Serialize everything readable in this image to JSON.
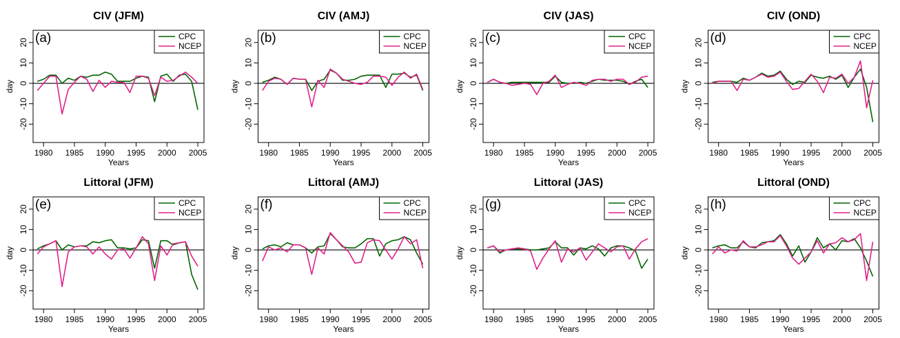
{
  "chart_data": [
    {
      "type": "line",
      "title": "CIV (JFM)",
      "annotation": "(a)",
      "xlabel": "Years",
      "ylabel": "day",
      "x": [
        1979,
        1980,
        1981,
        1982,
        1983,
        1984,
        1985,
        1986,
        1987,
        1988,
        1989,
        1990,
        1991,
        1992,
        1993,
        1994,
        1995,
        1996,
        1997,
        1998,
        1999,
        2000,
        2001,
        2002,
        2003,
        2004,
        2005
      ],
      "xlim": [
        1978.3,
        2006
      ],
      "xticks": [
        1980,
        1985,
        1990,
        1995,
        2000,
        2005
      ],
      "ylim": [
        -29,
        26
      ],
      "yticks": [
        -20,
        -10,
        0,
        10,
        20
      ],
      "hline": 0,
      "legend": "topright",
      "series": [
        {
          "name": "CPC",
          "color": "#006400",
          "values": [
            1,
            2,
            4,
            4,
            0,
            2.5,
            1.5,
            3.5,
            3,
            4,
            4,
            5.5,
            4.5,
            1,
            1,
            1,
            2.5,
            3.5,
            3,
            -9,
            3.5,
            4.5,
            1,
            4,
            4.5,
            1,
            -13
          ]
        },
        {
          "name": "NCEP",
          "color": "#e0218a",
          "values": [
            -3.5,
            0,
            3.5,
            3.5,
            -15,
            -3,
            0.5,
            3.5,
            2,
            -4,
            1.5,
            -2,
            1,
            0.5,
            0.5,
            -4.5,
            3.5,
            3.5,
            2.5,
            -6,
            3,
            1,
            1.5,
            3.5,
            5.5,
            3,
            0
          ]
        }
      ]
    },
    {
      "type": "line",
      "title": "CIV (AMJ)",
      "annotation": "(b)",
      "xlabel": "Years",
      "ylabel": "day",
      "x": [
        1979,
        1980,
        1981,
        1982,
        1983,
        1984,
        1985,
        1986,
        1987,
        1988,
        1989,
        1990,
        1991,
        1992,
        1993,
        1994,
        1995,
        1996,
        1997,
        1998,
        1999,
        2000,
        2001,
        2002,
        2003,
        2004,
        2005
      ],
      "xlim": [
        1978.3,
        2006
      ],
      "xticks": [
        1980,
        1985,
        1990,
        1995,
        2000,
        2005
      ],
      "ylim": [
        -29,
        26
      ],
      "yticks": [
        -20,
        -10,
        0,
        10,
        20
      ],
      "hline": 0,
      "legend": "topright",
      "series": [
        {
          "name": "CPC",
          "color": "#006400",
          "values": [
            0.5,
            1.5,
            3,
            2,
            -0.5,
            2.5,
            2,
            2,
            -3.5,
            1,
            2,
            6.5,
            5,
            1.5,
            1.5,
            2,
            3.5,
            4,
            4,
            4,
            -2,
            4.5,
            4.5,
            5,
            3,
            4,
            -3.5
          ]
        },
        {
          "name": "NCEP",
          "color": "#e0218a",
          "values": [
            -3.5,
            1,
            2.5,
            2,
            -0.5,
            2.5,
            2,
            2,
            -11.5,
            1.5,
            -2,
            7,
            5,
            2,
            1,
            0,
            -0.5,
            0.5,
            3.5,
            3.5,
            3,
            -1,
            3,
            5.5,
            2.5,
            4.5,
            -3
          ]
        }
      ]
    },
    {
      "type": "line",
      "title": "CIV (JAS)",
      "annotation": "(c)",
      "xlabel": "Years",
      "ylabel": "day",
      "x": [
        1979,
        1980,
        1981,
        1982,
        1983,
        1984,
        1985,
        1986,
        1987,
        1988,
        1989,
        1990,
        1991,
        1992,
        1993,
        1994,
        1995,
        1996,
        1997,
        1998,
        1999,
        2000,
        2001,
        2002,
        2003,
        2004,
        2005
      ],
      "xlim": [
        1978.3,
        2006
      ],
      "xticks": [
        1980,
        1985,
        1990,
        1995,
        2000,
        2005
      ],
      "ylim": [
        -29,
        26
      ],
      "yticks": [
        -20,
        -10,
        0,
        10,
        20
      ],
      "hline": 0,
      "legend": "topright",
      "series": [
        {
          "name": "CPC",
          "color": "#006400",
          "values": [
            0.5,
            2,
            0.5,
            0,
            0.5,
            0.5,
            0.5,
            0.5,
            0.5,
            0.5,
            0.5,
            3.5,
            0.5,
            0,
            0,
            0.5,
            0,
            1,
            2,
            1.5,
            1.5,
            1.5,
            1,
            -0.5,
            1,
            2,
            -2
          ]
        },
        {
          "name": "NCEP",
          "color": "#e0218a",
          "values": [
            0.5,
            2,
            0.5,
            0,
            -1,
            -0.5,
            0,
            -0.5,
            -5.5,
            0,
            1,
            4,
            -2,
            -0.5,
            0.5,
            0,
            -1,
            1.5,
            2,
            2,
            1,
            2,
            2,
            -0.5,
            0.5,
            3,
            3.5
          ]
        }
      ]
    },
    {
      "type": "line",
      "title": "CIV (OND)",
      "annotation": "(d)",
      "xlabel": "Years",
      "ylabel": "day",
      "x": [
        1979,
        1980,
        1981,
        1982,
        1983,
        1984,
        1985,
        1986,
        1987,
        1988,
        1989,
        1990,
        1991,
        1992,
        1993,
        1994,
        1995,
        1996,
        1997,
        1998,
        1999,
        2000,
        2001,
        2002,
        2003,
        2004,
        2005
      ],
      "xlim": [
        1978.3,
        2006
      ],
      "xticks": [
        1980,
        1985,
        1990,
        1995,
        2000,
        2005
      ],
      "ylim": [
        -29,
        26
      ],
      "yticks": [
        -20,
        -10,
        0,
        10,
        20
      ],
      "hline": 0,
      "legend": "topright",
      "series": [
        {
          "name": "CPC",
          "color": "#006400",
          "values": [
            0.5,
            1,
            1,
            1,
            0.5,
            2.5,
            1.5,
            3,
            5,
            3.5,
            4,
            6,
            2,
            -0.5,
            1,
            0.5,
            4,
            3,
            2.5,
            3.5,
            2,
            4,
            -2,
            3,
            7,
            -2,
            -19
          ]
        },
        {
          "name": "NCEP",
          "color": "#e0218a",
          "values": [
            0,
            1,
            1,
            1,
            -3.5,
            2,
            1.5,
            3,
            4.5,
            3,
            3.5,
            5.5,
            1,
            -3,
            -2.5,
            1,
            4.5,
            1,
            -4.5,
            3,
            2.5,
            4.5,
            0,
            3,
            11,
            -12,
            1.5
          ]
        }
      ]
    },
    {
      "type": "line",
      "title": "Littoral (JFM)",
      "annotation": "(e)",
      "xlabel": "Years",
      "ylabel": "day",
      "x": [
        1979,
        1980,
        1981,
        1982,
        1983,
        1984,
        1985,
        1986,
        1987,
        1988,
        1989,
        1990,
        1991,
        1992,
        1993,
        1994,
        1995,
        1996,
        1997,
        1998,
        1999,
        2000,
        2001,
        2002,
        2003,
        2004,
        2005
      ],
      "xlim": [
        1978.3,
        2006
      ],
      "xticks": [
        1980,
        1985,
        1990,
        1995,
        2000,
        2005
      ],
      "ylim": [
        -29,
        26
      ],
      "yticks": [
        -20,
        -10,
        0,
        10,
        20
      ],
      "hline": 0,
      "legend": "topright",
      "series": [
        {
          "name": "CPC",
          "color": "#006400",
          "values": [
            0.5,
            2,
            3,
            4.5,
            0,
            2.5,
            1.5,
            2,
            2,
            4,
            3.5,
            4.5,
            5,
            1,
            1,
            0.5,
            1,
            5,
            4.5,
            -9,
            4.5,
            4.5,
            2.5,
            3.5,
            4,
            -12,
            -19.5
          ]
        },
        {
          "name": "NCEP",
          "color": "#e0218a",
          "values": [
            -2,
            1.5,
            3,
            4.5,
            -18,
            -1,
            1.5,
            2,
            1.5,
            -2,
            1.5,
            -2,
            -4.5,
            0,
            0.5,
            -4,
            1,
            6.5,
            3,
            -15,
            2,
            -2.5,
            3,
            3.5,
            4,
            -3,
            -8
          ]
        }
      ]
    },
    {
      "type": "line",
      "title": "Littoral (AMJ)",
      "annotation": "(f)",
      "xlabel": "Years",
      "ylabel": "day",
      "x": [
        1979,
        1980,
        1981,
        1982,
        1983,
        1984,
        1985,
        1986,
        1987,
        1988,
        1989,
        1990,
        1991,
        1992,
        1993,
        1994,
        1995,
        1996,
        1997,
        1998,
        1999,
        2000,
        2001,
        2002,
        2003,
        2004,
        2005
      ],
      "xlim": [
        1978.3,
        2006
      ],
      "xticks": [
        1980,
        1985,
        1990,
        1995,
        2000,
        2005
      ],
      "ylim": [
        -29,
        26
      ],
      "yticks": [
        -20,
        -10,
        0,
        10,
        20
      ],
      "hline": 0,
      "legend": "topright",
      "series": [
        {
          "name": "CPC",
          "color": "#006400",
          "values": [
            0.5,
            2,
            2.5,
            1.5,
            3.5,
            2.5,
            2.5,
            1,
            -1.5,
            1.5,
            2,
            8,
            5,
            1.5,
            1,
            1,
            3,
            5.5,
            5.5,
            -3,
            3,
            4.5,
            5,
            6.5,
            5,
            -1.5,
            -7
          ]
        },
        {
          "name": "NCEP",
          "color": "#e0218a",
          "values": [
            -5.5,
            1.5,
            0,
            1,
            -1,
            2.5,
            2.5,
            1,
            -12,
            1,
            -2,
            8.5,
            5,
            2,
            -1,
            -6.5,
            -6,
            3.5,
            5,
            4.5,
            0,
            -4.5,
            0.5,
            6.5,
            3,
            5,
            -9
          ]
        }
      ]
    },
    {
      "type": "line",
      "title": "Littoral (JAS)",
      "annotation": "(g)",
      "xlabel": "Years",
      "ylabel": "day",
      "x": [
        1979,
        1980,
        1981,
        1982,
        1983,
        1984,
        1985,
        1986,
        1987,
        1988,
        1989,
        1990,
        1991,
        1992,
        1993,
        1994,
        1995,
        1996,
        1997,
        1998,
        1999,
        2000,
        2001,
        2002,
        2003,
        2004,
        2005
      ],
      "xlim": [
        1978.3,
        2006
      ],
      "xticks": [
        1980,
        1985,
        1990,
        1995,
        2000,
        2005
      ],
      "ylim": [
        -29,
        26
      ],
      "yticks": [
        -20,
        -10,
        0,
        10,
        20
      ],
      "hline": 0,
      "legend": "topright",
      "series": [
        {
          "name": "CPC",
          "color": "#006400",
          "values": [
            1,
            2,
            -1.5,
            0,
            0.5,
            0.5,
            0.5,
            0,
            0,
            0.5,
            1,
            4,
            1,
            1,
            -2.5,
            1,
            0.5,
            2,
            0.5,
            -3,
            1,
            2,
            2,
            1,
            -0.5,
            -9,
            -4.5
          ]
        },
        {
          "name": "NCEP",
          "color": "#e0218a",
          "values": [
            1,
            2,
            -1,
            0,
            0.5,
            1,
            0.5,
            -0.5,
            -9.5,
            -4,
            0.5,
            4.5,
            -6,
            0.5,
            -1,
            1,
            -5,
            -1,
            3,
            1,
            -1,
            1.5,
            2,
            -4.5,
            0.5,
            4,
            5.5
          ]
        }
      ]
    },
    {
      "type": "line",
      "title": "Littoral (OND)",
      "annotation": "(h)",
      "xlabel": "Years",
      "ylabel": "day",
      "x": [
        1979,
        1980,
        1981,
        1982,
        1983,
        1984,
        1985,
        1986,
        1987,
        1988,
        1989,
        1990,
        1991,
        1992,
        1993,
        1994,
        1995,
        1996,
        1997,
        1998,
        1999,
        2000,
        2001,
        2002,
        2003,
        2004,
        2005
      ],
      "xlim": [
        1978.3,
        2006
      ],
      "xticks": [
        1980,
        1985,
        1990,
        1995,
        2000,
        2005
      ],
      "ylim": [
        -29,
        26
      ],
      "yticks": [
        -20,
        -10,
        0,
        10,
        20
      ],
      "hline": 0,
      "legend": "topright",
      "series": [
        {
          "name": "CPC",
          "color": "#006400",
          "values": [
            1,
            2,
            2.5,
            1,
            1,
            4,
            1.5,
            1,
            3.5,
            4,
            4.5,
            7.5,
            3,
            -3,
            2,
            -6,
            -1,
            6,
            1,
            3,
            0,
            4.5,
            4,
            5.5,
            1,
            -5.5,
            -13
          ]
        },
        {
          "name": "NCEP",
          "color": "#e0218a",
          "values": [
            -2,
            1.5,
            -1.5,
            0,
            -0.5,
            4.5,
            1.5,
            1.5,
            2.5,
            4,
            4,
            7,
            2,
            -4,
            -7,
            -4,
            -1,
            4.5,
            -1.5,
            3,
            3.5,
            6,
            4,
            5,
            8,
            -15,
            4
          ]
        }
      ]
    }
  ]
}
